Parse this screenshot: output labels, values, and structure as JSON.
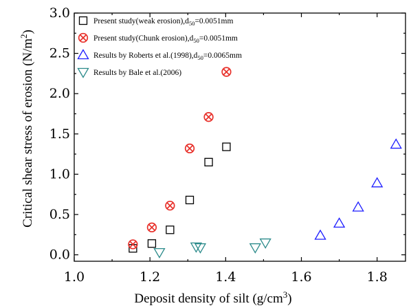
{
  "chart_data": {
    "type": "scatter",
    "xlabel_main": "Deposit density of silt (g/cm",
    "xlabel_sup": "3",
    "xlabel_end": ")",
    "ylabel_main": "Critical shear stress of erosion (N/m",
    "ylabel_sup": "2",
    "ylabel_end": ")",
    "xlim": [
      1.0,
      1.875
    ],
    "ylim": [
      -0.08,
      3.0
    ],
    "xticks": [
      1.0,
      1.2,
      1.4,
      1.6,
      1.8
    ],
    "xtick_labels": [
      "1.0",
      "1.2",
      "1.4",
      "1.6",
      "1.8"
    ],
    "yticks": [
      0.0,
      0.5,
      1.0,
      1.5,
      2.0,
      2.5,
      3.0
    ],
    "ytick_labels": [
      "0.0",
      "0.5",
      "1.0",
      "1.5",
      "2.0",
      "2.5",
      "3.0"
    ],
    "legend_position": "top-left",
    "series": [
      {
        "name": "Present study(weak erosion),d50=0.0051mm",
        "legend_main": "Present study(weak erosion),d",
        "legend_sub": "50",
        "legend_end": "=0.0051mm",
        "marker": "square",
        "color": "#000000",
        "x": [
          1.155,
          1.205,
          1.253,
          1.305,
          1.355,
          1.402
        ],
        "y": [
          0.08,
          0.14,
          0.31,
          0.68,
          1.15,
          1.34
        ]
      },
      {
        "name": "Present study(Chunk erosion),d50=0.0051mm",
        "legend_main": "Present study(Chunk erosion),d",
        "legend_sub": "50",
        "legend_end": "=0.0051mm",
        "marker": "circle-x",
        "color": "#e8302a",
        "x": [
          1.155,
          1.205,
          1.253,
          1.305,
          1.355,
          1.402
        ],
        "y": [
          0.13,
          0.34,
          0.61,
          1.32,
          1.71,
          2.27
        ]
      },
      {
        "name": "Results by Roberts et al.(1998),d50=0.0065mm",
        "legend_main": "Results by Roberts et al.(1998),d",
        "legend_sub": "50",
        "legend_end": "=0.0065mm",
        "marker": "triangle-up",
        "color": "#1c1cff",
        "x": [
          1.65,
          1.7,
          1.75,
          1.8,
          1.85
        ],
        "y": [
          0.24,
          0.39,
          0.59,
          0.89,
          1.37
        ]
      },
      {
        "name": "Results by Bale et al.(2006)",
        "legend_main": "Results by Bale et al.(2006)",
        "legend_sub": "",
        "legend_end": "",
        "marker": "triangle-down",
        "color": "#2a8a8a",
        "x": [
          1.225,
          1.322,
          1.333,
          1.478,
          1.505
        ],
        "y": [
          0.03,
          0.1,
          0.09,
          0.09,
          0.15
        ]
      }
    ]
  }
}
